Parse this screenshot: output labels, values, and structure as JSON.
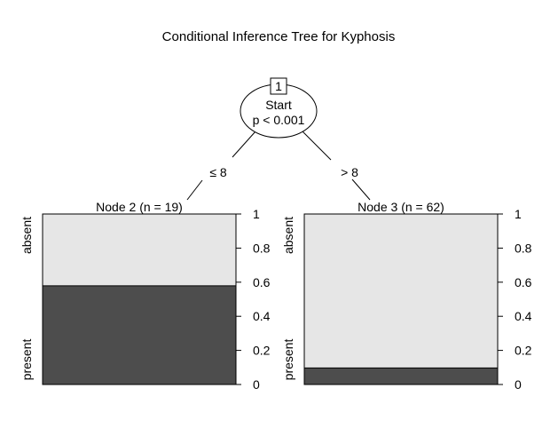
{
  "title": "Conditional Inference Tree for Kyphosis",
  "root": {
    "id": "1",
    "variable": "Start",
    "pvalue": "p < 0.001"
  },
  "edges": {
    "left": "≤ 8",
    "right": "> 8"
  },
  "terminal_nodes": [
    {
      "header": "Node 2 (n = 19)",
      "class_labels": [
        "absent",
        "present"
      ],
      "present_fraction": 0.579
    },
    {
      "header": "Node 3 (n = 62)",
      "class_labels": [
        "absent",
        "present"
      ],
      "present_fraction": 0.097
    }
  ],
  "axis_ticks": [
    "0",
    "0.2",
    "0.4",
    "0.6",
    "0.8",
    "1"
  ],
  "colors": {
    "absent": "#e6e6e6",
    "present": "#4d4d4d",
    "line": "#000000"
  }
}
